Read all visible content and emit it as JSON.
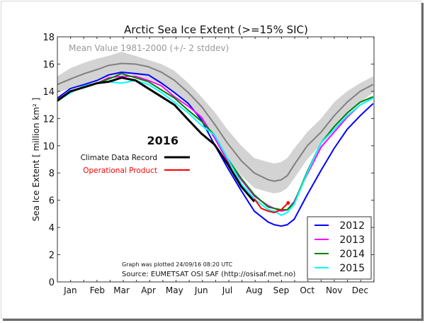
{
  "chart_data": {
    "type": "line",
    "title": "Arctic Sea Ice Extent (>=15% SIC)",
    "xlabel": "",
    "ylabel": "Sea Ice Extent [ million km² ]",
    "ylim": [
      0,
      18
    ],
    "xlim": [
      0,
      365
    ],
    "yticks": [
      0,
      2,
      4,
      6,
      8,
      10,
      12,
      14,
      16,
      18
    ],
    "month_labels": [
      "Jan",
      "Feb",
      "Mar",
      "Apr",
      "May",
      "Jun",
      "Jul",
      "Aug",
      "Sep",
      "Oct",
      "Nov",
      "Dec"
    ],
    "x_units": "day of year",
    "mean_label": "Mean Value 1981-2000 (+/- 2 stddev)",
    "x": [
      0,
      15,
      31,
      46,
      59,
      74,
      90,
      105,
      120,
      135,
      151,
      166,
      181,
      196,
      212,
      227,
      243,
      250,
      258,
      265,
      273,
      288,
      304,
      319,
      334,
      349,
      364
    ],
    "mean": {
      "name": "Mean 1981-2000",
      "color": "#808080",
      "values": [
        14.5,
        14.9,
        15.3,
        15.6,
        15.9,
        16.05,
        16.0,
        15.8,
        15.4,
        14.8,
        13.9,
        12.9,
        11.6,
        10.2,
        8.9,
        8.0,
        7.5,
        7.4,
        7.5,
        7.8,
        8.6,
        10.0,
        11.0,
        12.2,
        13.2,
        14.0,
        14.5
      ]
    },
    "band": {
      "name": "+/- 2 stddev",
      "color": "#d3d3d3",
      "upper": [
        15.1,
        15.7,
        16.1,
        16.4,
        16.6,
        16.9,
        16.6,
        16.3,
        16.0,
        15.5,
        14.6,
        13.6,
        12.5,
        11.2,
        10.0,
        9.1,
        8.8,
        8.7,
        8.8,
        9.1,
        9.8,
        11.0,
        12.0,
        13.2,
        14.0,
        14.6,
        15.1
      ],
      "lower": [
        13.9,
        14.2,
        14.5,
        14.8,
        15.1,
        15.3,
        15.2,
        14.9,
        14.5,
        13.9,
        13.0,
        11.9,
        10.6,
        9.2,
        7.8,
        6.9,
        6.6,
        6.5,
        6.6,
        6.9,
        7.6,
        9.0,
        10.1,
        11.3,
        12.3,
        13.2,
        13.9
      ]
    },
    "series": [
      {
        "name": "2012",
        "color": "#0000ff",
        "values": [
          13.5,
          14.2,
          14.5,
          14.8,
          15.2,
          15.4,
          15.3,
          15.2,
          14.6,
          13.9,
          13.1,
          11.9,
          10.1,
          8.4,
          6.7,
          5.2,
          4.4,
          4.2,
          4.1,
          4.2,
          4.6,
          6.4,
          8.2,
          9.8,
          11.2,
          12.2,
          13.1
        ]
      },
      {
        "name": "2013",
        "color": "#ff00ff",
        "values": [
          13.4,
          14.0,
          14.3,
          14.6,
          15.0,
          15.1,
          15.1,
          14.8,
          14.4,
          13.6,
          12.9,
          12.1,
          10.6,
          8.9,
          7.5,
          6.3,
          5.6,
          5.4,
          5.2,
          5.3,
          5.9,
          7.9,
          9.9,
          11.0,
          12.1,
          13.0,
          13.5
        ]
      },
      {
        "name": "2014",
        "color": "#008000",
        "values": [
          13.4,
          13.9,
          14.4,
          14.6,
          14.9,
          15.3,
          15.0,
          14.7,
          14.1,
          13.5,
          12.6,
          11.8,
          10.8,
          9.1,
          7.6,
          6.4,
          5.5,
          5.4,
          5.3,
          5.3,
          5.8,
          8.1,
          10.2,
          11.4,
          12.4,
          13.2,
          13.6
        ]
      },
      {
        "name": "2015",
        "color": "#00ffff",
        "values": [
          13.3,
          13.9,
          14.4,
          14.6,
          14.7,
          14.6,
          14.8,
          14.5,
          13.9,
          13.2,
          12.4,
          11.5,
          10.8,
          9.1,
          7.2,
          6.1,
          5.3,
          5.2,
          4.9,
          5.1,
          5.7,
          8.0,
          10.2,
          11.2,
          12.2,
          13.0,
          13.5
        ]
      }
    ],
    "series_2016": [
      {
        "name": "Climate Data Record",
        "color": "#000000",
        "x": [
          0,
          15,
          31,
          46,
          59,
          74,
          90,
          105,
          120,
          135,
          151,
          166,
          181,
          196,
          212,
          227
        ],
        "values": [
          13.3,
          14.0,
          14.3,
          14.6,
          14.7,
          15.0,
          14.8,
          14.2,
          13.6,
          13.0,
          11.9,
          10.9,
          10.1,
          8.7,
          7.0,
          5.9
        ]
      },
      {
        "name": "Operational Product",
        "color": "#ff0000",
        "x": [
          227,
          235,
          243,
          250,
          258,
          266
        ],
        "values": [
          6.1,
          5.4,
          5.2,
          5.1,
          5.3,
          5.8
        ]
      }
    ],
    "legend": {
      "placement": "bottom-right",
      "entries": [
        "2012",
        "2013",
        "2014",
        "2015"
      ]
    },
    "key_2016": {
      "title": "2016",
      "entries": [
        {
          "label": "Climate Data Record",
          "color": "#000000"
        },
        {
          "label": "Operational Product",
          "color": "#ff0000"
        }
      ]
    },
    "annotations": {
      "plotted": "Graph was plotted 24/09/16 08:20 UTC",
      "source": "Source: EUMETSAT OSI SAF (http://osisaf.met.no)"
    },
    "grid": false
  }
}
